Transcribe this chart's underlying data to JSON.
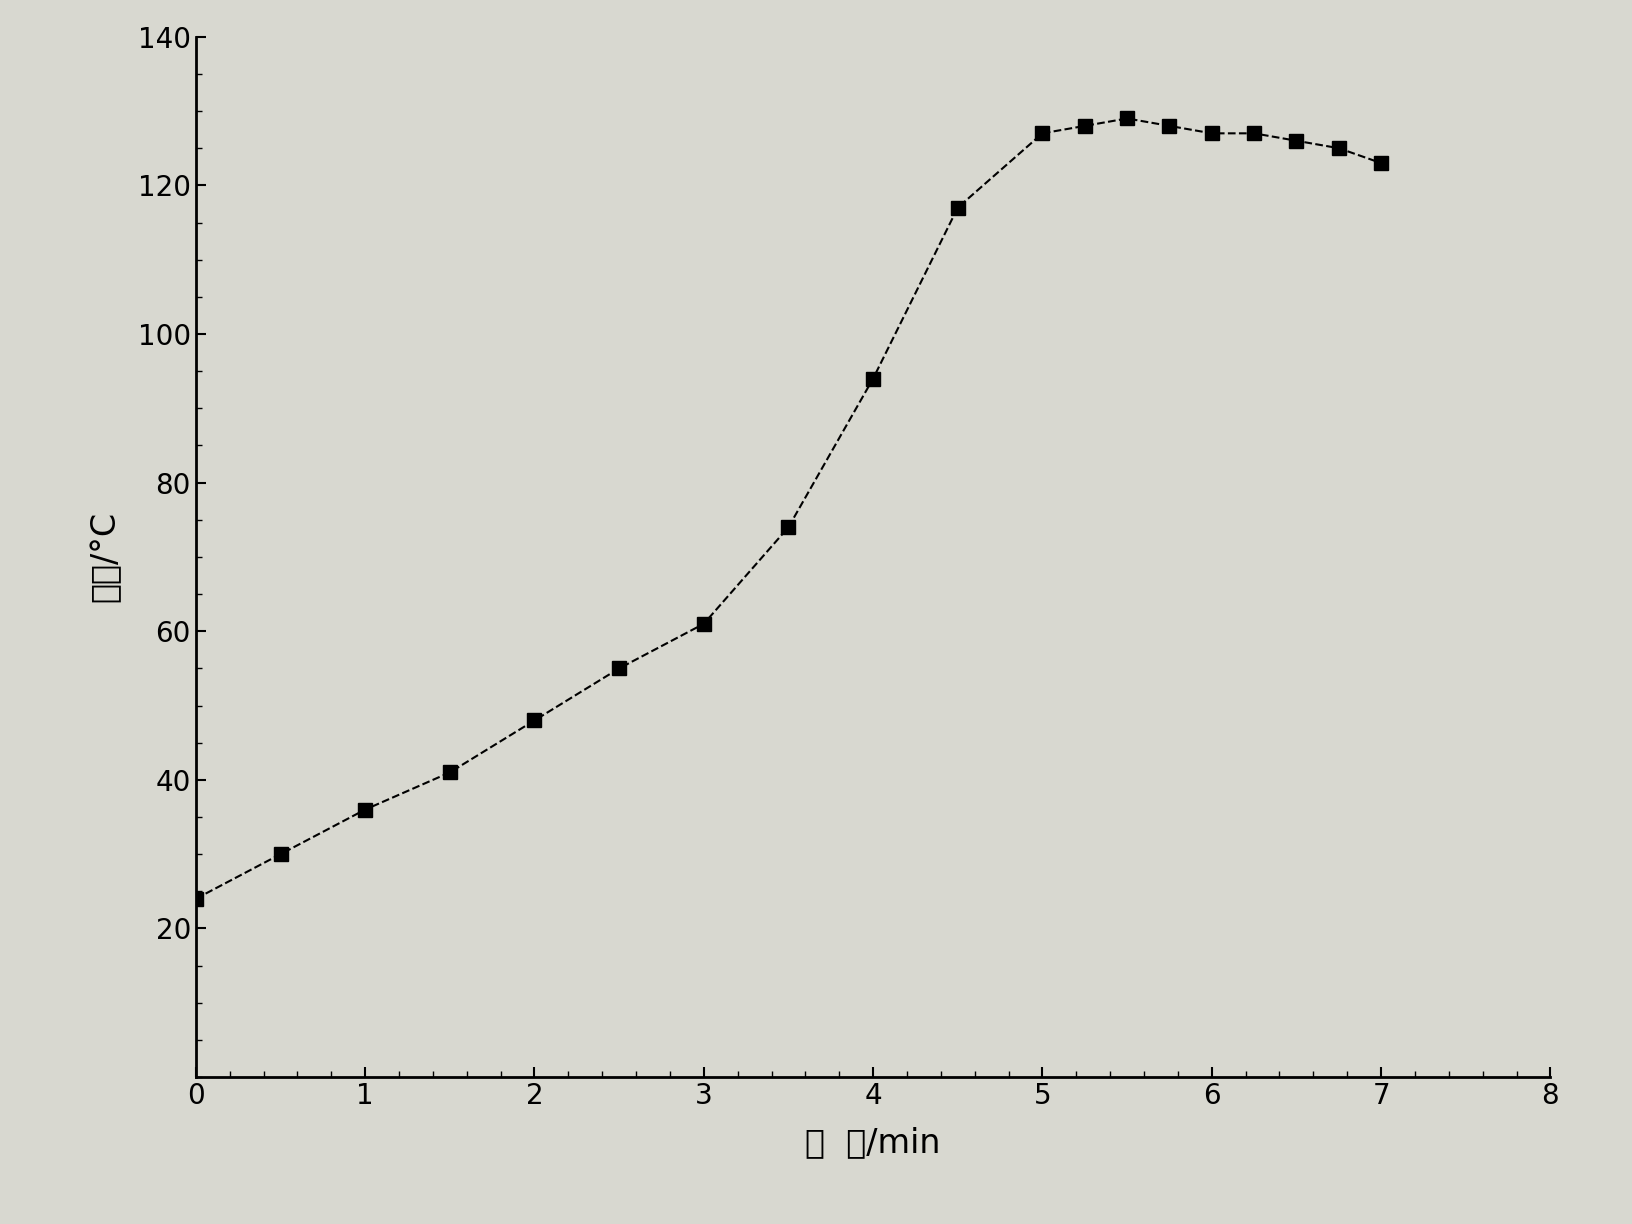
{
  "x": [
    0,
    0.5,
    1.0,
    1.5,
    2.0,
    2.5,
    3.0,
    3.5,
    4.0,
    4.5,
    5.0,
    5.25,
    5.5,
    5.75,
    6.0,
    6.25,
    6.5,
    6.75,
    7.0
  ],
  "y": [
    24,
    30,
    36,
    41,
    48,
    55,
    61,
    74,
    94,
    117,
    127,
    128,
    129,
    128,
    127,
    127,
    126,
    125,
    123
  ],
  "xlabel": "时  间/min",
  "ylabel": "温度/°C",
  "xlim": [
    0,
    8
  ],
  "ylim": [
    0,
    140
  ],
  "xticks": [
    0,
    1,
    2,
    3,
    4,
    5,
    6,
    7,
    8
  ],
  "yticks": [
    20,
    40,
    60,
    80,
    100,
    120,
    140
  ],
  "marker": "s",
  "marker_color": "#000000",
  "line_color": "#000000",
  "marker_size": 10,
  "line_style": "--",
  "line_width": 1.5,
  "background_color": "#d8d8d0",
  "axes_bg_color": "#d8d8d0",
  "tick_label_fontsize": 20,
  "axis_label_fontsize": 24,
  "font_name": "SimHei"
}
